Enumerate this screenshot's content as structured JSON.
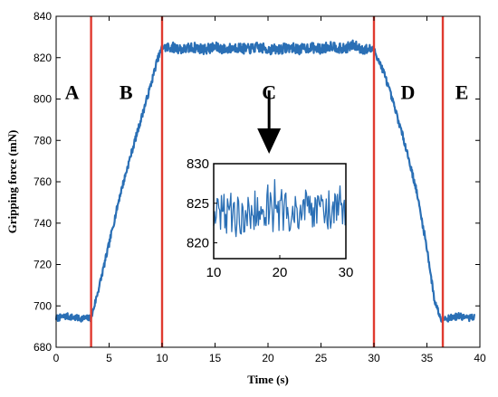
{
  "chart_data": [
    {
      "type": "line",
      "title": "",
      "xlabel": "Time (s)",
      "ylabel": "Gripping force (mN)",
      "xlim": [
        0,
        40
      ],
      "ylim": [
        680,
        840
      ],
      "xticks": [
        0,
        5,
        10,
        15,
        20,
        25,
        30,
        35,
        40
      ],
      "yticks": [
        680,
        700,
        720,
        740,
        760,
        780,
        800,
        820,
        840
      ],
      "grid": false,
      "line_color": "#2a6fb5",
      "series": [
        {
          "x": [
            0,
            1,
            2,
            3,
            3.3,
            4,
            5,
            6,
            7,
            8,
            9,
            9.5,
            10,
            11,
            12,
            13,
            14,
            15,
            16,
            17,
            18,
            19,
            20,
            21,
            22,
            23,
            24,
            25,
            26,
            27,
            28,
            29,
            30,
            31,
            32,
            33,
            34,
            35,
            35.7,
            36.3,
            37,
            38,
            39,
            39.5
          ],
          "y": [
            694,
            695,
            694,
            694,
            694,
            708,
            730,
            753,
            772,
            790,
            808,
            818,
            825,
            825,
            824,
            825,
            824,
            825,
            824,
            825,
            824,
            825,
            824,
            824,
            825,
            824,
            825,
            824,
            826,
            824,
            826,
            824,
            824,
            812,
            795,
            777,
            756,
            728,
            703,
            694,
            694,
            695,
            694,
            695
          ]
        }
      ],
      "vlines": [
        3.3,
        10,
        30,
        36.5
      ],
      "vline_color": "#e03a2f",
      "region_labels": [
        "A",
        "B",
        "C",
        "D",
        "E"
      ]
    },
    {
      "type": "line",
      "title": "",
      "xlim": [
        10,
        30
      ],
      "ylim": [
        818,
        830
      ],
      "xticks": [
        10,
        20,
        30
      ],
      "yticks": [
        820,
        825,
        830
      ],
      "series": [
        {
          "x": [
            10,
            12,
            14,
            16,
            18,
            20,
            22,
            24,
            26,
            28,
            30
          ],
          "y": [
            823.5,
            823.8,
            823.2,
            824.0,
            823.6,
            824.1,
            823.7,
            824.2,
            823.9,
            824.0,
            823.6
          ]
        }
      ]
    }
  ]
}
